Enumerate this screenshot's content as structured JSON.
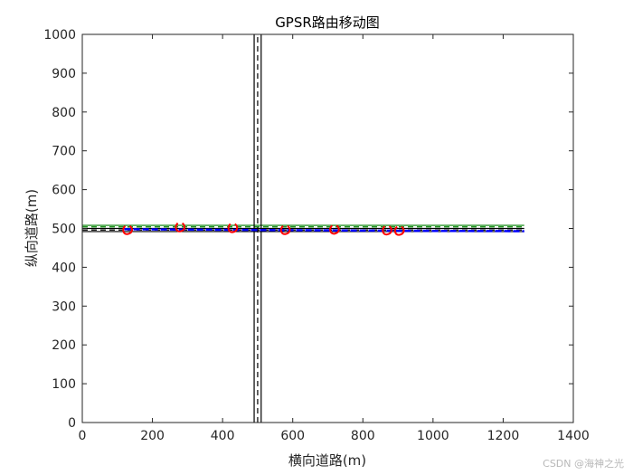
{
  "chart_data": {
    "type": "line",
    "title": "GPSR路由移动图",
    "xlabel": "横向道路(m)",
    "ylabel": "纵向道路(m)",
    "xlim": [
      0,
      1400
    ],
    "ylim": [
      0,
      1000
    ],
    "xticks": [
      0,
      200,
      400,
      600,
      800,
      1000,
      1200,
      1400
    ],
    "yticks": [
      0,
      100,
      200,
      300,
      400,
      500,
      600,
      700,
      800,
      900,
      1000
    ],
    "grid": false,
    "road_lines": {
      "horizontal": [
        {
          "y": 508,
          "x": [
            0,
            1260
          ],
          "color": "#008000",
          "style": "solid"
        },
        {
          "y": 504,
          "x": [
            0,
            1260
          ],
          "color": "#008000",
          "style": "dashed"
        },
        {
          "y": 500,
          "x": [
            0,
            1260
          ],
          "color": "#000000",
          "style": "solid"
        },
        {
          "y": 496,
          "x": [
            0,
            1260
          ],
          "color": "#000000",
          "style": "dashed"
        },
        {
          "y": 492,
          "x": [
            0,
            1260
          ],
          "color": "#000000",
          "style": "solid"
        }
      ],
      "vertical": [
        {
          "x": 490,
          "y": [
            0,
            1000
          ],
          "color": "#000000",
          "style": "solid"
        },
        {
          "x": 500,
          "y": [
            0,
            1000
          ],
          "color": "#000000",
          "style": "dashed"
        },
        {
          "x": 510,
          "y": [
            0,
            1000
          ],
          "color": "#000000",
          "style": "solid"
        }
      ]
    },
    "route": {
      "color": "#0000ff",
      "x": [
        120,
        300,
        500,
        700,
        900,
        1260
      ],
      "y": [
        498,
        497,
        496,
        495,
        494,
        493
      ]
    },
    "vehicles": {
      "color": "#ff0000",
      "x": [
        130,
        280,
        430,
        580,
        720,
        870,
        905
      ],
      "y": [
        495,
        502,
        500,
        495,
        496,
        494,
        493
      ]
    },
    "watermark": "CSDN @海神之光"
  }
}
